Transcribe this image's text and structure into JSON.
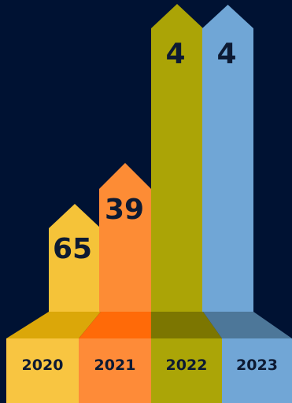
{
  "chart_data": {
    "type": "bar",
    "title": "",
    "xlabel": "",
    "ylabel": "",
    "categories": [
      "2020",
      "2021",
      "2022",
      "2023"
    ],
    "series": [
      {
        "data_labels": [
          "65",
          "39",
          "4",
          "4"
        ]
      }
    ],
    "colors": {
      "background": "#001233",
      "bars": [
        "#f5c339",
        "#fd8c35",
        "#aba406",
        "#70a6d6"
      ],
      "floor": [
        "#dba709",
        "#ff6a08",
        "#7c7601",
        "#4d7799"
      ],
      "base": [
        "#f8c541",
        "#fe8b38",
        "#aba507",
        "#71a6d6"
      ],
      "text": "#0d1a33"
    }
  }
}
